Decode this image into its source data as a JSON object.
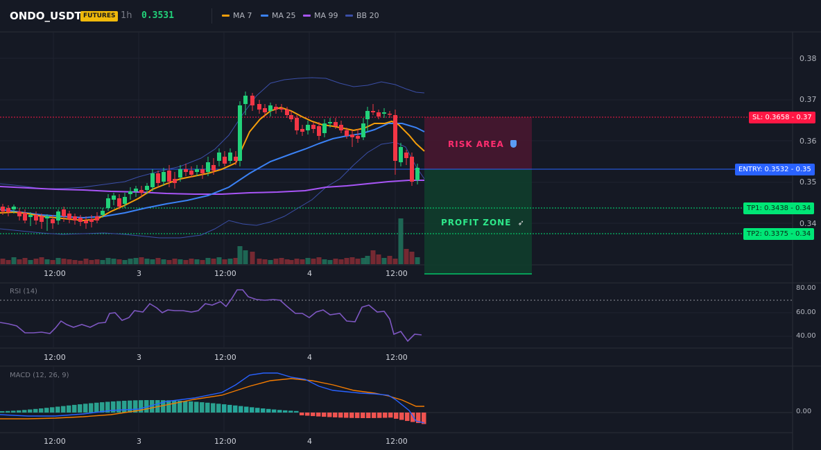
{
  "header": {
    "symbol": "ONDO_USDT",
    "badge": "FUTURES",
    "timeframe": "1h",
    "last_price": "0.3531",
    "indicators": [
      {
        "label": "MA 7",
        "color": "#f59e0b"
      },
      {
        "label": "MA 25",
        "color": "#3b82f6"
      },
      {
        "label": "MA 99",
        "color": "#a855f7"
      },
      {
        "label": "BB 20",
        "color": "#3b4fa8"
      }
    ]
  },
  "main_chart": {
    "y_axis": [
      "0.38",
      "0.37",
      "0.36",
      "0.35",
      "0.34"
    ],
    "x_axis": [
      "12:00",
      "3",
      "12:00",
      "4",
      "12:00"
    ],
    "zones": {
      "risk_label": "RISK AREA",
      "risk_icon": "shield-icon",
      "profit_label": "PROFIT ZONE",
      "profit_icon": "rocket-icon"
    },
    "levels": {
      "sl": "SL: 0.3658 - 0.37",
      "entry": "ENTRY: 0.3532 - 0.35",
      "tp1": "TP1: 0.3438 - 0.34",
      "tp2": "TP2: 0.3375 - 0.34"
    },
    "colors": {
      "up": "#22d27a",
      "down": "#f23645",
      "sl": "#ff1744",
      "entry": "#2962ff",
      "tp": "#00e676"
    }
  },
  "rsi_panel": {
    "title": "RSI (14)",
    "y_axis": [
      "80.00",
      "60.00",
      "40.00"
    ],
    "x_axis": [
      "12:00",
      "3",
      "12:00",
      "4",
      "12:00"
    ]
  },
  "macd_panel": {
    "title": "MACD (12, 26, 9)",
    "y_axis": [
      "0.00"
    ],
    "x_axis": [
      "12:00",
      "3",
      "12:00",
      "4",
      "12:00"
    ]
  }
}
